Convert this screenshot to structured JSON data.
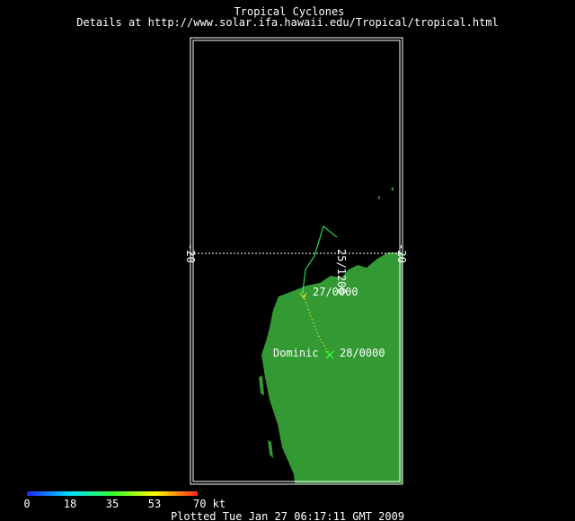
{
  "header": {
    "title": "Tropical Cyclones",
    "subtitle": "Details at http://www.solar.ifa.hawaii.edu/Tropical/tropical.html"
  },
  "map": {
    "lat_left": "-20",
    "lat_right": "-20",
    "track_labels": [
      "25/1200",
      "27/0000",
      "28/0000"
    ],
    "storm_name": "Dominic"
  },
  "colorbar": {
    "labels": [
      "0",
      "18",
      "35",
      "53",
      "70 kt"
    ]
  },
  "footer": "Plotted Tue Jan 27 06:17:11 GMT 2009"
}
